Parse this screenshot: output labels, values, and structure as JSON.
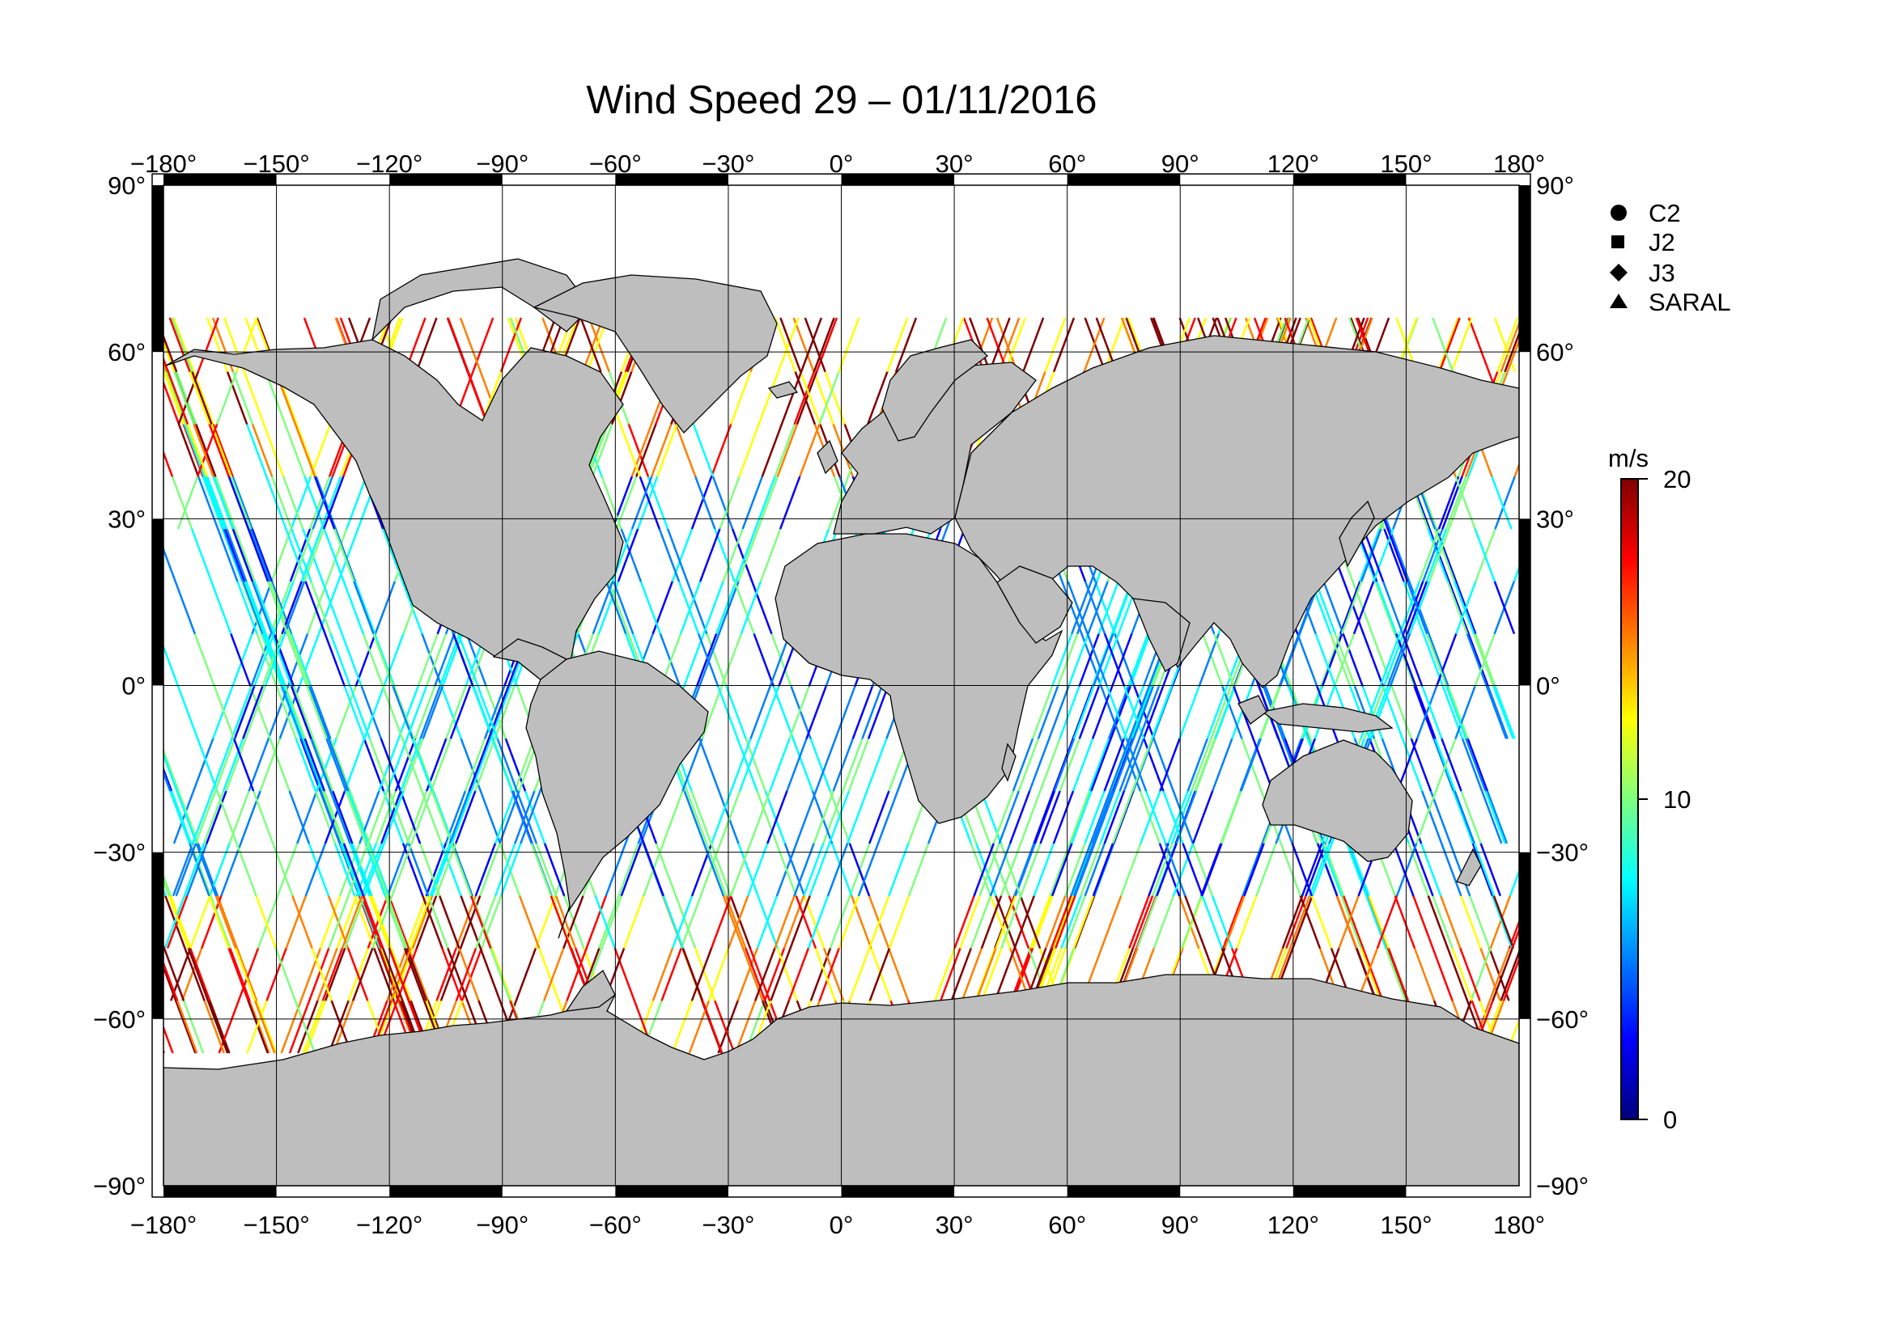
{
  "title": "Wind Speed 29 – 01/11/2016",
  "degree_symbol": "°",
  "lon_labels": [
    "−180",
    "−150",
    "−120",
    "−90",
    "−60",
    "−30",
    "0",
    "30",
    "60",
    "90",
    "120",
    "150",
    "180"
  ],
  "lat_labels": [
    "90",
    "60",
    "30",
    "0",
    "−30",
    "−60",
    "−90"
  ],
  "lon_values": [
    -180,
    -150,
    -120,
    -90,
    -60,
    -30,
    0,
    30,
    60,
    90,
    120,
    150,
    180
  ],
  "lat_values": [
    90,
    60,
    30,
    0,
    -30,
    -60,
    -90
  ],
  "missions": [
    {
      "name": "C2",
      "marker": "circle"
    },
    {
      "name": "J2",
      "marker": "square"
    },
    {
      "name": "J3",
      "marker": "diamond"
    },
    {
      "name": "SARAL",
      "marker": "triangle"
    }
  ],
  "colorbar": {
    "unit": "m/s",
    "min": 0,
    "max": 20,
    "ticks": [
      0,
      10,
      20
    ],
    "colors": [
      "#00007f",
      "#0000ff",
      "#007fff",
      "#00ffff",
      "#7fff7f",
      "#ffff00",
      "#ff7f00",
      "#ff0000",
      "#7f0000"
    ]
  },
  "colors": {
    "land": "#bebebe",
    "ocean": "#ffffff",
    "grid": "#000000",
    "frame_dark": "#000000"
  }
}
